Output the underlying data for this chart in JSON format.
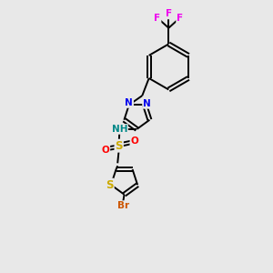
{
  "background_color": "#e8e8e8",
  "bond_color": "#000000",
  "atom_colors": {
    "F": "#ee00ee",
    "N": "#0000ee",
    "NH_color": "#008888",
    "O": "#ff0000",
    "S": "#ccaa00",
    "Br": "#cc5500",
    "H": "#000000",
    "C": "#000000"
  },
  "font_size": 7.5,
  "lw": 1.4
}
